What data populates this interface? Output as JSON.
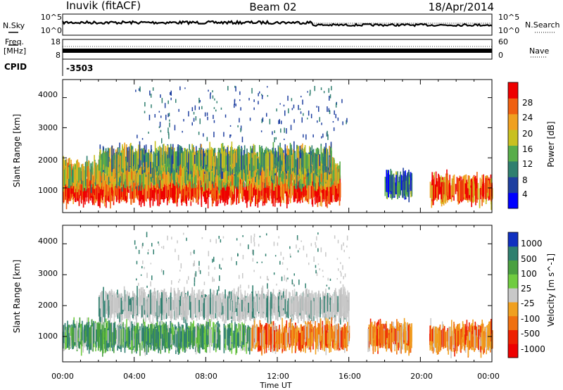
{
  "header": {
    "station": "Inuvik (fitACF)",
    "beam": "Beam 02",
    "date": "18/Apr/2014"
  },
  "top_panels": {
    "nsky_label": "N.Sky",
    "nsky_ticks": [
      "10^5",
      "10^0"
    ],
    "nsearch_label": "N.Search",
    "nsearch_ticks": [
      "10^5",
      "10^0"
    ],
    "freq_label": "Freq.",
    "freq_unit": "[MHz]",
    "freq_ticks": [
      "18",
      "8"
    ],
    "nave_label": "Nave",
    "nave_ticks": [
      "60",
      "0"
    ],
    "cpid_label": "CPID",
    "cpid_value": "-3503"
  },
  "chart_data": [
    {
      "type": "heatmap",
      "parameter": "Power",
      "ylabel": "Slant Range [km]",
      "ylim": [
        180,
        4600
      ],
      "yticks": [
        1000,
        2000,
        3000,
        4000
      ],
      "xlim_hours": [
        0,
        24
      ],
      "colorbar_label": "Power [dB]",
      "colorbar_ticks": [
        "4",
        "8",
        "12",
        "16",
        "20",
        "24",
        "28"
      ],
      "colorbar_colors": [
        "#0000ff",
        "#1e3fa0",
        "#2f7f6f",
        "#58ad4a",
        "#c8c020",
        "#f0a020",
        "#f06010",
        "#ee0000"
      ],
      "bands": [
        {
          "start": 0.0,
          "end": 15.5,
          "center_km": 950,
          "level": 7
        },
        {
          "start": 0.0,
          "end": 15.5,
          "center_km": 1450,
          "level": 4
        },
        {
          "start": 2.0,
          "end": 15.0,
          "center_km": 1900,
          "level": 3
        },
        {
          "start": 18.0,
          "end": 19.5,
          "center_km": 1100,
          "level": 2
        },
        {
          "start": 20.5,
          "end": 24.0,
          "center_km": 950,
          "level": 6
        }
      ]
    },
    {
      "type": "heatmap",
      "parameter": "Velocity",
      "ylabel": "Slant Range [km]",
      "ylim": [
        180,
        4600
      ],
      "yticks": [
        1000,
        2000,
        3000,
        4000
      ],
      "xlim_hours": [
        0,
        24
      ],
      "colorbar_label": "Velocity [m s^-1]",
      "colorbar_ticks": [
        "1000",
        "500",
        "100",
        "25",
        "-25",
        "-100",
        "-500",
        "-1000"
      ],
      "colorbar_colors": [
        "#1030c0",
        "#2f7f6f",
        "#4aa040",
        "#70cc40",
        "#c8c8c8",
        "#f0a020",
        "#f07010",
        "#ee2000",
        "#ee0000"
      ],
      "bands": [
        {
          "start": 0.0,
          "end": 10.5,
          "center_km": 1000,
          "level": "positive"
        },
        {
          "start": 2.0,
          "end": 16.0,
          "center_km": 2000,
          "level": "near-zero"
        },
        {
          "start": 10.5,
          "end": 16.0,
          "center_km": 1000,
          "level": "negative"
        },
        {
          "start": 17.0,
          "end": 19.5,
          "center_km": 1000,
          "level": "negative"
        },
        {
          "start": 20.5,
          "end": 24.0,
          "center_km": 950,
          "level": "negative"
        }
      ]
    }
  ],
  "time_axis": {
    "ticks": [
      "00:00",
      "04:00",
      "08:00",
      "12:00",
      "16:00",
      "20:00",
      "00:00"
    ],
    "label": "Time UT"
  }
}
